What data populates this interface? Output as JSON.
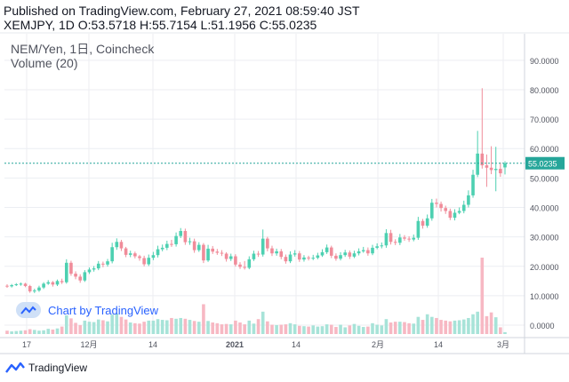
{
  "header": {
    "published": "Published on TradingView.com, February 27, 2021 08:59:40 JST",
    "ohlc": "XEMJPY, 1D O:53.5718 H:55.7154 L:51.1956 C:55.0235"
  },
  "legend": {
    "symbol_line": "NEM/Yen, 1日, Coincheck",
    "volume_line": "Volume (20)"
  },
  "watermark": "Chart by TradingView",
  "footer": {
    "brand": "TradingView"
  },
  "colors": {
    "up": "#26a69a",
    "down": "#ef5350",
    "up_candle": "#4dd0b1",
    "down_candle": "#f08c9a",
    "vol_up": "#a7e3d8",
    "vol_down": "#f7b8c3",
    "price_line": "#26a69a",
    "grid": "#eceef2"
  },
  "chart_data": {
    "type": "candlestick",
    "title": "NEM/Yen, 1日, Coincheck",
    "ylim": [
      -3,
      99
    ],
    "y_ticks": [
      "90.0000",
      "80.0000",
      "70.0000",
      "60.0000",
      "50.0000",
      "40.0000",
      "30.0000",
      "20.0000",
      "10.0000",
      "0.0000"
    ],
    "x_ticks": [
      "17",
      "12月",
      "14",
      "2021",
      "14",
      "2月",
      "14",
      "3月"
    ],
    "last_price": 55.0235,
    "last_price_label": "55.0235",
    "grid": true,
    "close": [
      13.2,
      13.6,
      13.9,
      14.1,
      13.3,
      11.5,
      11.8,
      12.8,
      14.1,
      14.6,
      13.8,
      15.0,
      14.6,
      21.2,
      17.5,
      16.5,
      15.2,
      18.0,
      18.9,
      19.3,
      20.9,
      20.6,
      21.7,
      26.5,
      28.3,
      26.1,
      23.9,
      24.4,
      23.4,
      22.8,
      20.7,
      22.9,
      23.8,
      25.8,
      26.3,
      27.6,
      27.5,
      30.3,
      32.0,
      28.2,
      28.5,
      25.5,
      27.3,
      22.0,
      26.0,
      25.0,
      24.6,
      24.3,
      22.5,
      23.4,
      20.6,
      19.8,
      19.5,
      22.4,
      24.3,
      24.0,
      29.4,
      26.1,
      24.4,
      25.1,
      23.2,
      21.7,
      24.0,
      24.4,
      22.3,
      23.0,
      22.8,
      22.9,
      23.7,
      24.8,
      26.4,
      23.6,
      22.6,
      23.8,
      24.7,
      23.3,
      24.4,
      25.1,
      25.5,
      24.4,
      26.3,
      26.8,
      27.1,
      31.3,
      28.3,
      28.0,
      29.8,
      29.4,
      29.1,
      29.7,
      35.4,
      33.8,
      36.3,
      41.6,
      41.2,
      39.8,
      38.8,
      36.5,
      38.2,
      38.8,
      40.9,
      44.1,
      51.1,
      58.3,
      54.3,
      53.5,
      52.7,
      53.1,
      51.6,
      55.0
    ],
    "open": [
      13.4,
      13.2,
      13.6,
      13.9,
      14.1,
      13.3,
      11.5,
      11.8,
      12.8,
      14.1,
      14.6,
      13.8,
      15.0,
      14.6,
      21.2,
      17.5,
      16.5,
      15.2,
      18.0,
      18.9,
      19.3,
      20.9,
      20.6,
      21.7,
      26.5,
      28.3,
      26.1,
      23.9,
      24.4,
      23.4,
      22.8,
      20.7,
      22.9,
      23.8,
      25.8,
      26.3,
      27.6,
      27.5,
      30.3,
      32.0,
      28.2,
      28.5,
      25.5,
      27.3,
      22.0,
      26.0,
      25.0,
      24.6,
      24.3,
      22.5,
      23.4,
      20.6,
      19.8,
      19.5,
      22.4,
      24.3,
      24.0,
      29.4,
      26.1,
      24.4,
      25.1,
      23.2,
      21.7,
      24.0,
      24.4,
      22.3,
      23.0,
      22.8,
      22.9,
      23.7,
      24.8,
      26.4,
      23.6,
      22.6,
      23.8,
      24.7,
      23.3,
      24.4,
      25.1,
      25.5,
      24.4,
      26.3,
      26.8,
      27.1,
      31.3,
      28.3,
      28.0,
      29.8,
      29.4,
      29.1,
      29.7,
      35.4,
      33.8,
      36.3,
      41.6,
      41.2,
      39.8,
      38.8,
      36.5,
      38.2,
      38.8,
      40.9,
      44.1,
      51.1,
      58.3,
      54.3,
      53.5,
      52.7,
      53.1,
      53.6
    ],
    "high": [
      13.9,
      14.0,
      14.3,
      14.5,
      14.4,
      13.7,
      12.4,
      13.4,
      14.6,
      15.3,
      15.0,
      15.5,
      15.8,
      22.4,
      21.9,
      18.3,
      17.3,
      18.7,
      19.6,
      20.1,
      21.8,
      21.6,
      22.5,
      28.0,
      29.5,
      29.0,
      26.6,
      25.3,
      25.0,
      23.9,
      23.6,
      24.0,
      24.9,
      27.0,
      27.4,
      28.7,
      29.0,
      31.5,
      33.0,
      32.8,
      29.7,
      29.4,
      28.2,
      27.9,
      27.3,
      26.9,
      25.9,
      25.5,
      24.8,
      24.3,
      24.1,
      21.4,
      21.8,
      23.4,
      25.3,
      25.2,
      32.5,
      30.0,
      27.0,
      26.0,
      25.9,
      24.0,
      25.1,
      25.5,
      25.2,
      23.8,
      23.6,
      23.9,
      24.6,
      25.8,
      27.4,
      27.0,
      24.4,
      24.8,
      25.6,
      25.4,
      25.3,
      26.1,
      26.6,
      26.4,
      27.3,
      27.8,
      28.1,
      32.6,
      32.4,
      29.2,
      31.0,
      30.6,
      30.2,
      30.8,
      36.8,
      36.1,
      37.6,
      42.9,
      43.0,
      42.0,
      40.6,
      39.6,
      39.4,
      40.0,
      42.3,
      45.8,
      52.8,
      66.0,
      80.5,
      58.0,
      60.8,
      60.6,
      55.3,
      55.7
    ],
    "low": [
      12.7,
      12.8,
      13.3,
      13.4,
      12.9,
      11.0,
      10.9,
      11.3,
      12.3,
      13.7,
      13.1,
      13.3,
      14.0,
      14.1,
      16.8,
      15.6,
      14.4,
      14.7,
      17.4,
      18.2,
      18.7,
      19.7,
      19.9,
      21.0,
      25.6,
      25.2,
      23.1,
      23.1,
      22.7,
      21.9,
      20.0,
      20.1,
      22.1,
      23.0,
      25.1,
      25.5,
      26.6,
      26.7,
      29.6,
      27.3,
      27.3,
      24.6,
      24.9,
      21.1,
      21.5,
      24.2,
      23.9,
      23.5,
      21.6,
      21.8,
      19.9,
      19.1,
      18.9,
      19.0,
      21.8,
      23.2,
      23.3,
      25.1,
      23.5,
      23.6,
      22.4,
      20.9,
      21.1,
      23.3,
      21.5,
      21.6,
      22.0,
      22.1,
      22.4,
      23.2,
      24.2,
      22.8,
      21.9,
      22.0,
      23.2,
      22.5,
      22.8,
      23.7,
      24.6,
      23.6,
      23.8,
      25.8,
      26.1,
      26.3,
      27.4,
      27.2,
      27.2,
      28.7,
      28.3,
      28.5,
      29.0,
      32.8,
      33.1,
      35.5,
      40.0,
      38.6,
      37.8,
      35.7,
      35.6,
      37.7,
      38.0,
      40.0,
      43.3,
      50.3,
      53.2,
      47.0,
      51.3,
      45.5,
      50.4,
      51.2
    ],
    "volume": [
      0.9,
      0.7,
      0.8,
      0.9,
      1.0,
      1.3,
      1.1,
      0.9,
      1.0,
      1.4,
      1.2,
      1.5,
      2.0,
      5.0,
      4.2,
      3.0,
      2.4,
      3.6,
      3.3,
      3.2,
      3.9,
      3.7,
      3.4,
      5.2,
      5.5,
      4.6,
      3.9,
      3.1,
      2.9,
      2.8,
      3.3,
      3.6,
      3.6,
      4.0,
      3.8,
      3.7,
      4.3,
      4.1,
      4.3,
      4.1,
      3.8,
      3.5,
      3.3,
      8.0,
      3.5,
      3.1,
      2.9,
      2.6,
      2.7,
      2.6,
      3.6,
      3.1,
      2.6,
      3.6,
      2.8,
      4.0,
      6.0,
      3.4,
      2.5,
      2.4,
      2.5,
      2.6,
      2.9,
      2.6,
      2.2,
      2.1,
      2.0,
      2.3,
      2.0,
      2.1,
      2.6,
      2.5,
      1.9,
      2.5,
      1.8,
      2.3,
      2.7,
      2.2,
      1.9,
      2.0,
      2.9,
      2.5,
      2.3,
      4.0,
      3.1,
      3.3,
      3.3,
      3.2,
      2.9,
      2.8,
      4.6,
      3.8,
      5.3,
      4.6,
      4.3,
      3.8,
      3.6,
      3.4,
      3.6,
      3.7,
      3.9,
      4.3,
      5.3,
      6.0,
      20.5,
      4.8,
      5.8,
      4.5,
      1.8,
      0.5
    ]
  }
}
